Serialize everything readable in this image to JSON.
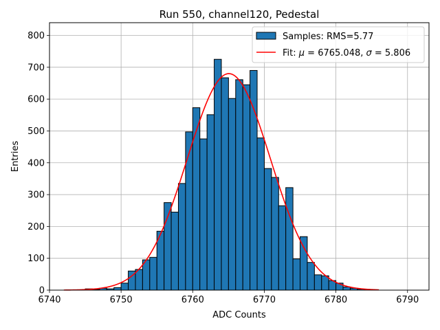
{
  "chart_data": {
    "type": "bar",
    "title": "Run 550, channel120, Pedestal",
    "xlabel": "ADC Counts",
    "ylabel": "Entries",
    "xlim": [
      6740,
      6793
    ],
    "ylim": [
      0,
      840
    ],
    "xticks": [
      6740,
      6750,
      6760,
      6770,
      6780,
      6790
    ],
    "yticks": [
      0,
      100,
      200,
      300,
      400,
      500,
      600,
      700,
      800
    ],
    "grid": true,
    "legend_position": "top-right",
    "histogram": {
      "name": "Samples: RMS=5.77",
      "color": "#1f77b4",
      "edge_color": "#000000",
      "bins": [
        {
          "x0": 6745.0,
          "x1": 6746.0,
          "count": 4
        },
        {
          "x0": 6746.0,
          "x1": 6747.0,
          "count": 2
        },
        {
          "x0": 6747.0,
          "x1": 6748.0,
          "count": 6
        },
        {
          "x0": 6748.0,
          "x1": 6749.0,
          "count": 4
        },
        {
          "x0": 6749.0,
          "x1": 6750.0,
          "count": 8
        },
        {
          "x0": 6750.0,
          "x1": 6751.0,
          "count": 22
        },
        {
          "x0": 6751.0,
          "x1": 6752.0,
          "count": 60
        },
        {
          "x0": 6752.0,
          "x1": 6753.0,
          "count": 65
        },
        {
          "x0": 6753.0,
          "x1": 6754.0,
          "count": 95
        },
        {
          "x0": 6754.0,
          "x1": 6755.0,
          "count": 103
        },
        {
          "x0": 6755.0,
          "x1": 6756.0,
          "count": 185
        },
        {
          "x0": 6756.0,
          "x1": 6757.0,
          "count": 275
        },
        {
          "x0": 6757.0,
          "x1": 6758.0,
          "count": 245
        },
        {
          "x0": 6758.0,
          "x1": 6759.0,
          "count": 335
        },
        {
          "x0": 6759.0,
          "x1": 6760.0,
          "count": 497
        },
        {
          "x0": 6760.0,
          "x1": 6761.0,
          "count": 573
        },
        {
          "x0": 6761.0,
          "x1": 6762.0,
          "count": 475
        },
        {
          "x0": 6762.0,
          "x1": 6763.0,
          "count": 551
        },
        {
          "x0": 6763.0,
          "x1": 6764.0,
          "count": 725
        },
        {
          "x0": 6764.0,
          "x1": 6765.0,
          "count": 667
        },
        {
          "x0": 6765.0,
          "x1": 6766.0,
          "count": 602
        },
        {
          "x0": 6766.0,
          "x1": 6767.0,
          "count": 661
        },
        {
          "x0": 6767.0,
          "x1": 6768.0,
          "count": 645
        },
        {
          "x0": 6768.0,
          "x1": 6769.0,
          "count": 690
        },
        {
          "x0": 6769.0,
          "x1": 6770.0,
          "count": 478
        },
        {
          "x0": 6770.0,
          "x1": 6771.0,
          "count": 382
        },
        {
          "x0": 6771.0,
          "x1": 6772.0,
          "count": 354
        },
        {
          "x0": 6772.0,
          "x1": 6773.0,
          "count": 265
        },
        {
          "x0": 6773.0,
          "x1": 6774.0,
          "count": 322
        },
        {
          "x0": 6774.0,
          "x1": 6775.0,
          "count": 98
        },
        {
          "x0": 6775.0,
          "x1": 6776.0,
          "count": 168
        },
        {
          "x0": 6776.0,
          "x1": 6777.0,
          "count": 87
        },
        {
          "x0": 6777.0,
          "x1": 6778.0,
          "count": 48
        },
        {
          "x0": 6778.0,
          "x1": 6779.0,
          "count": 45
        },
        {
          "x0": 6779.0,
          "x1": 6780.0,
          "count": 30
        },
        {
          "x0": 6780.0,
          "x1": 6781.0,
          "count": 22
        },
        {
          "x0": 6781.0,
          "x1": 6782.0,
          "count": 10
        },
        {
          "x0": 6782.0,
          "x1": 6783.0,
          "count": 6
        },
        {
          "x0": 6783.0,
          "x1": 6784.0,
          "count": 3
        },
        {
          "x0": 6784.0,
          "x1": 6785.0,
          "count": 2
        }
      ]
    },
    "fit": {
      "name": "Fit: μ = 6765.048, σ = 5.806",
      "legend_prefix": "Fit: ",
      "mu_symbol": "μ",
      "mu_text": " = 6765.048, ",
      "sigma_symbol": "σ",
      "sigma_text": " = 5.806",
      "color": "#ff0000",
      "mu": 6765.048,
      "sigma": 5.806,
      "amplitude": 680,
      "x_range": [
        6742,
        6786
      ]
    }
  }
}
